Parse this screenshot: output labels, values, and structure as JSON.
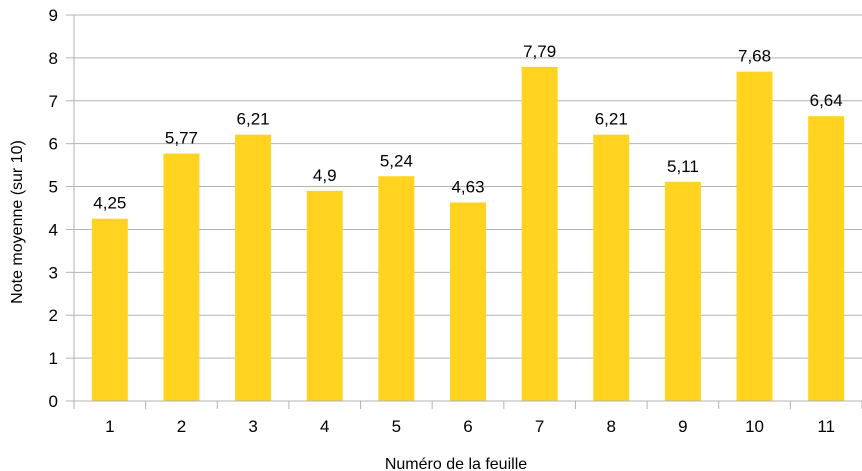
{
  "chart_data": {
    "type": "bar",
    "categories": [
      "1",
      "2",
      "3",
      "4",
      "5",
      "6",
      "7",
      "8",
      "9",
      "10",
      "11"
    ],
    "values": [
      4.25,
      5.77,
      6.21,
      4.9,
      5.24,
      4.63,
      7.79,
      6.21,
      5.11,
      7.68,
      6.64
    ],
    "data_labels": [
      "4,25",
      "5,77",
      "6,21",
      "4,9",
      "5,24",
      "4,63",
      "7,79",
      "6,21",
      "5,11",
      "7,68",
      "6,64"
    ],
    "yticks": [
      "0",
      "1",
      "2",
      "3",
      "4",
      "5",
      "6",
      "7",
      "8",
      "9"
    ],
    "xlabel": "Numéro de la feuille",
    "ylabel": "Note moyenne (sur 10)",
    "ylim": [
      0,
      9
    ],
    "grid": true,
    "legend": "none",
    "bar_color": "#FFD320",
    "grid_color": "#B3B3B3"
  }
}
